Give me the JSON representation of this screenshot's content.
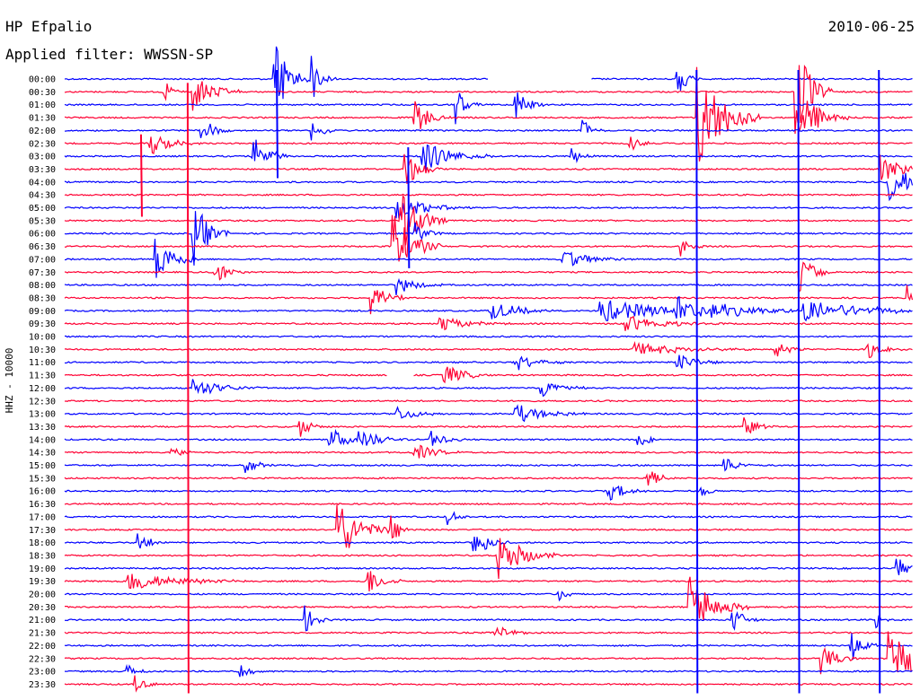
{
  "header": {
    "station": "HP Efpalio",
    "date": "2010-06-25",
    "filter_label": "Applied filter: WWSSN-SP"
  },
  "chart_data": {
    "type": "line",
    "channel_label": "HHZ - 10000",
    "row_labels": [
      "00:00",
      "00:30",
      "01:00",
      "01:30",
      "02:00",
      "02:30",
      "03:00",
      "03:30",
      "04:00",
      "04:30",
      "05:00",
      "05:30",
      "06:00",
      "06:30",
      "07:00",
      "07:30",
      "08:00",
      "08:30",
      "09:00",
      "09:30",
      "10:00",
      "10:30",
      "11:00",
      "11:30",
      "12:00",
      "12:30",
      "13:00",
      "13:30",
      "14:00",
      "14:30",
      "15:00",
      "15:30",
      "16:00",
      "16:30",
      "17:00",
      "17:30",
      "18:00",
      "18:30",
      "19:00",
      "19:30",
      "20:00",
      "20:30",
      "21:00",
      "21:30",
      "22:00",
      "22:30",
      "23:00",
      "23:30"
    ],
    "trace_colors": [
      "#0000ff",
      "#ff0033"
    ],
    "events": [
      {
        "row": 0,
        "t": 0.245,
        "amp": 60,
        "dur": 0.015
      },
      {
        "row": 0,
        "t": 0.29,
        "amp": 30,
        "dur": 0.01
      },
      {
        "row": 0,
        "t": 0.72,
        "amp": 25,
        "dur": 0.01
      },
      {
        "row": 1,
        "t": 0.115,
        "amp": 15,
        "dur": 0.01
      },
      {
        "row": 1,
        "t": 0.15,
        "amp": 25,
        "dur": 0.02
      },
      {
        "row": 1,
        "t": 0.86,
        "amp": 70,
        "dur": 0.015
      },
      {
        "row": 2,
        "t": 0.46,
        "amp": 25,
        "dur": 0.01
      },
      {
        "row": 2,
        "t": 0.53,
        "amp": 25,
        "dur": 0.012
      },
      {
        "row": 3,
        "t": 0.745,
        "amp": 70,
        "dur": 0.025
      },
      {
        "row": 3,
        "t": 0.865,
        "amp": 40,
        "dur": 0.02
      },
      {
        "row": 3,
        "t": 0.41,
        "amp": 25,
        "dur": 0.015
      },
      {
        "row": 4,
        "t": 0.16,
        "amp": 20,
        "dur": 0.012
      },
      {
        "row": 4,
        "t": 0.29,
        "amp": 20,
        "dur": 0.01
      },
      {
        "row": 4,
        "t": 0.61,
        "amp": 15,
        "dur": 0.01
      },
      {
        "row": 5,
        "t": 0.1,
        "amp": 15,
        "dur": 0.02
      },
      {
        "row": 5,
        "t": 0.665,
        "amp": 12,
        "dur": 0.01
      },
      {
        "row": 6,
        "t": 0.22,
        "amp": 30,
        "dur": 0.015
      },
      {
        "row": 6,
        "t": 0.42,
        "amp": 20,
        "dur": 0.03
      },
      {
        "row": 6,
        "t": 0.595,
        "amp": 15,
        "dur": 0.01
      },
      {
        "row": 7,
        "t": 0.4,
        "amp": 25,
        "dur": 0.015
      },
      {
        "row": 7,
        "t": 0.96,
        "amp": 20,
        "dur": 0.02
      },
      {
        "row": 8,
        "t": 0.97,
        "amp": 25,
        "dur": 0.025
      },
      {
        "row": 10,
        "t": 0.39,
        "amp": 15,
        "dur": 0.03
      },
      {
        "row": 11,
        "t": 0.395,
        "amp": 40,
        "dur": 0.02
      },
      {
        "row": 12,
        "t": 0.15,
        "amp": 45,
        "dur": 0.015
      },
      {
        "row": 12,
        "t": 0.41,
        "amp": 20,
        "dur": 0.012
      },
      {
        "row": 13,
        "t": 0.385,
        "amp": 45,
        "dur": 0.02
      },
      {
        "row": 13,
        "t": 0.725,
        "amp": 15,
        "dur": 0.01
      },
      {
        "row": 14,
        "t": 0.105,
        "amp": 30,
        "dur": 0.02
      },
      {
        "row": 14,
        "t": 0.585,
        "amp": 12,
        "dur": 0.03
      },
      {
        "row": 15,
        "t": 0.175,
        "amp": 15,
        "dur": 0.015
      },
      {
        "row": 15,
        "t": 0.865,
        "amp": 25,
        "dur": 0.015
      },
      {
        "row": 16,
        "t": 0.39,
        "amp": 12,
        "dur": 0.02
      },
      {
        "row": 17,
        "t": 0.36,
        "amp": 25,
        "dur": 0.015
      },
      {
        "row": 17,
        "t": 0.99,
        "amp": 20,
        "dur": 0.01
      },
      {
        "row": 18,
        "t": 0.5,
        "amp": 12,
        "dur": 0.03
      },
      {
        "row": 18,
        "t": 0.63,
        "amp": 14,
        "dur": 0.07
      },
      {
        "row": 18,
        "t": 0.72,
        "amp": 14,
        "dur": 0.06
      },
      {
        "row": 18,
        "t": 0.87,
        "amp": 12,
        "dur": 0.07
      },
      {
        "row": 19,
        "t": 0.44,
        "amp": 10,
        "dur": 0.03
      },
      {
        "row": 19,
        "t": 0.66,
        "amp": 10,
        "dur": 0.04
      },
      {
        "row": 21,
        "t": 0.67,
        "amp": 8,
        "dur": 0.05
      },
      {
        "row": 21,
        "t": 0.835,
        "amp": 12,
        "dur": 0.015
      },
      {
        "row": 21,
        "t": 0.945,
        "amp": 12,
        "dur": 0.015
      },
      {
        "row": 22,
        "t": 0.53,
        "amp": 12,
        "dur": 0.02
      },
      {
        "row": 22,
        "t": 0.72,
        "amp": 12,
        "dur": 0.02
      },
      {
        "row": 23,
        "t": 0.445,
        "amp": 15,
        "dur": 0.02
      },
      {
        "row": 24,
        "t": 0.15,
        "amp": 12,
        "dur": 0.03
      },
      {
        "row": 24,
        "t": 0.56,
        "amp": 12,
        "dur": 0.02
      },
      {
        "row": 26,
        "t": 0.53,
        "amp": 12,
        "dur": 0.03
      },
      {
        "row": 26,
        "t": 0.39,
        "amp": 10,
        "dur": 0.02
      },
      {
        "row": 27,
        "t": 0.275,
        "amp": 15,
        "dur": 0.012
      },
      {
        "row": 27,
        "t": 0.8,
        "amp": 12,
        "dur": 0.015
      },
      {
        "row": 28,
        "t": 0.31,
        "amp": 15,
        "dur": 0.02
      },
      {
        "row": 28,
        "t": 0.345,
        "amp": 15,
        "dur": 0.02
      },
      {
        "row": 28,
        "t": 0.43,
        "amp": 12,
        "dur": 0.015
      },
      {
        "row": 28,
        "t": 0.675,
        "amp": 12,
        "dur": 0.012
      },
      {
        "row": 29,
        "t": 0.12,
        "amp": 12,
        "dur": 0.012
      },
      {
        "row": 29,
        "t": 0.41,
        "amp": 12,
        "dur": 0.02
      },
      {
        "row": 30,
        "t": 0.21,
        "amp": 15,
        "dur": 0.012
      },
      {
        "row": 30,
        "t": 0.775,
        "amp": 15,
        "dur": 0.012
      },
      {
        "row": 31,
        "t": 0.685,
        "amp": 15,
        "dur": 0.012
      },
      {
        "row": 32,
        "t": 0.64,
        "amp": 12,
        "dur": 0.02
      },
      {
        "row": 32,
        "t": 0.75,
        "amp": 8,
        "dur": 0.01
      },
      {
        "row": 34,
        "t": 0.45,
        "amp": 10,
        "dur": 0.012
      },
      {
        "row": 35,
        "t": 0.32,
        "amp": 45,
        "dur": 0.02
      },
      {
        "row": 35,
        "t": 0.38,
        "amp": 25,
        "dur": 0.012
      },
      {
        "row": 36,
        "t": 0.085,
        "amp": 15,
        "dur": 0.012
      },
      {
        "row": 36,
        "t": 0.48,
        "amp": 25,
        "dur": 0.015
      },
      {
        "row": 37,
        "t": 0.51,
        "amp": 30,
        "dur": 0.025
      },
      {
        "row": 38,
        "t": 0.98,
        "amp": 12,
        "dur": 0.02
      },
      {
        "row": 39,
        "t": 0.07,
        "amp": 12,
        "dur": 0.05
      },
      {
        "row": 39,
        "t": 0.355,
        "amp": 20,
        "dur": 0.015
      },
      {
        "row": 40,
        "t": 0.58,
        "amp": 10,
        "dur": 0.01
      },
      {
        "row": 41,
        "t": 0.735,
        "amp": 40,
        "dur": 0.025
      },
      {
        "row": 42,
        "t": 0.28,
        "amp": 20,
        "dur": 0.012
      },
      {
        "row": 42,
        "t": 0.785,
        "amp": 20,
        "dur": 0.012
      },
      {
        "row": 42,
        "t": 0.955,
        "amp": 12,
        "dur": 0.01
      },
      {
        "row": 43,
        "t": 0.505,
        "amp": 12,
        "dur": 0.015
      },
      {
        "row": 44,
        "t": 0.925,
        "amp": 25,
        "dur": 0.012
      },
      {
        "row": 45,
        "t": 0.97,
        "amp": 45,
        "dur": 0.025
      },
      {
        "row": 45,
        "t": 0.89,
        "amp": 20,
        "dur": 0.015
      },
      {
        "row": 46,
        "t": 0.07,
        "amp": 12,
        "dur": 0.012
      },
      {
        "row": 46,
        "t": 0.205,
        "amp": 10,
        "dur": 0.012
      },
      {
        "row": 47,
        "t": 0.08,
        "amp": 12,
        "dur": 0.012
      }
    ],
    "persistent_spikes": [
      {
        "t": 0.145,
        "from": 1,
        "to": 47
      },
      {
        "t": 0.745,
        "from": 0,
        "to": 47
      },
      {
        "t": 0.96,
        "from": 0,
        "to": 47
      },
      {
        "t": 0.865,
        "from": 0,
        "to": 47
      },
      {
        "t": 0.25,
        "from": 0,
        "to": 7
      },
      {
        "t": 0.405,
        "from": 6,
        "to": 14
      },
      {
        "t": 0.09,
        "from": 5,
        "to": 10
      }
    ],
    "gaps": [
      {
        "row": 0,
        "from": 0.5,
        "to": 0.62
      },
      {
        "row": 23,
        "from": 0.38,
        "to": 0.41
      }
    ],
    "grid": false
  }
}
